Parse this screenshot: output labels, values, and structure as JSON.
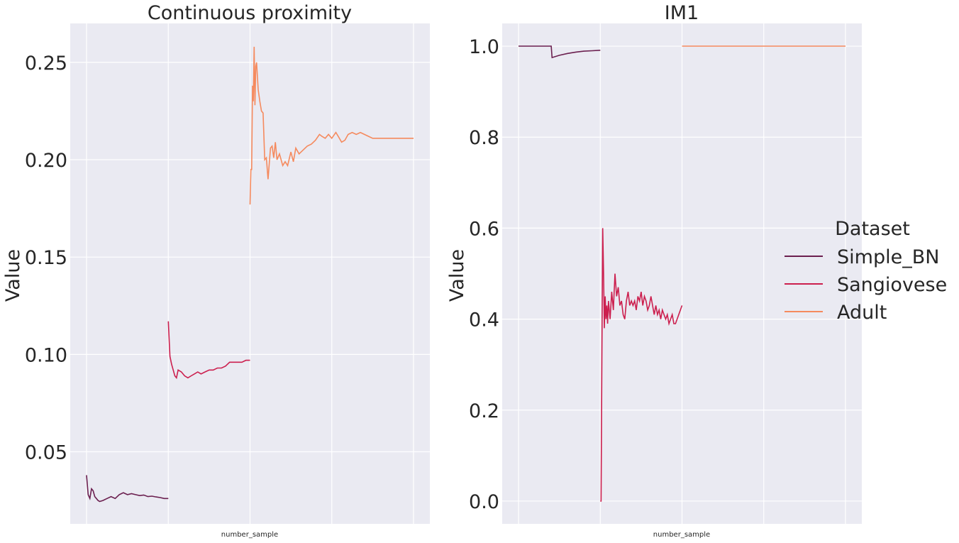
{
  "chart_data": [
    {
      "type": "line",
      "title": "Continuous proximity",
      "xlabel": "number_sample",
      "ylabel": "Value",
      "ylim": [
        0.013,
        0.27
      ],
      "yticks": [
        "0.05",
        "0.10",
        "0.15",
        "0.20",
        "0.25"
      ],
      "ytick_values": [
        0.05,
        0.1,
        0.15,
        0.2,
        0.25
      ],
      "xlim": [
        -0.2,
        4.2
      ],
      "xgrid": [
        0,
        1,
        2,
        3,
        4
      ],
      "grid": true,
      "series": [
        {
          "name": "Simple_BN",
          "color": "#6b1f4f",
          "points": [
            [
              0.0,
              0.038
            ],
            [
              0.02,
              0.028
            ],
            [
              0.04,
              0.026
            ],
            [
              0.06,
              0.031
            ],
            [
              0.08,
              0.03
            ],
            [
              0.1,
              0.027
            ],
            [
              0.12,
              0.026
            ],
            [
              0.14,
              0.025
            ],
            [
              0.16,
              0.0245
            ],
            [
              0.2,
              0.025
            ],
            [
              0.25,
              0.026
            ],
            [
              0.3,
              0.027
            ],
            [
              0.35,
              0.026
            ],
            [
              0.4,
              0.028
            ],
            [
              0.45,
              0.029
            ],
            [
              0.5,
              0.028
            ],
            [
              0.55,
              0.0285
            ],
            [
              0.6,
              0.028
            ],
            [
              0.65,
              0.0275
            ],
            [
              0.7,
              0.0278
            ],
            [
              0.75,
              0.027
            ],
            [
              0.8,
              0.0272
            ],
            [
              0.85,
              0.0268
            ],
            [
              0.9,
              0.0265
            ],
            [
              0.95,
              0.026
            ],
            [
              1.0,
              0.026
            ]
          ]
        },
        {
          "name": "Sangiovese",
          "color": "#cc1f4e",
          "points": [
            [
              1.0,
              0.117
            ],
            [
              1.02,
              0.099
            ],
            [
              1.04,
              0.095
            ],
            [
              1.06,
              0.092
            ],
            [
              1.08,
              0.089
            ],
            [
              1.1,
              0.088
            ],
            [
              1.12,
              0.092
            ],
            [
              1.16,
              0.091
            ],
            [
              1.2,
              0.089
            ],
            [
              1.24,
              0.088
            ],
            [
              1.28,
              0.089
            ],
            [
              1.32,
              0.09
            ],
            [
              1.36,
              0.091
            ],
            [
              1.4,
              0.09
            ],
            [
              1.45,
              0.091
            ],
            [
              1.5,
              0.092
            ],
            [
              1.55,
              0.092
            ],
            [
              1.6,
              0.093
            ],
            [
              1.65,
              0.093
            ],
            [
              1.7,
              0.094
            ],
            [
              1.75,
              0.096
            ],
            [
              1.8,
              0.096
            ],
            [
              1.85,
              0.096
            ],
            [
              1.9,
              0.096
            ],
            [
              1.95,
              0.097
            ],
            [
              2.0,
              0.097
            ]
          ]
        },
        {
          "name": "Adult",
          "color": "#f58a5e",
          "points": [
            [
              2.0,
              0.177
            ],
            [
              2.01,
              0.195
            ],
            [
              2.02,
              0.195
            ],
            [
              2.03,
              0.238
            ],
            [
              2.04,
              0.23
            ],
            [
              2.05,
              0.258
            ],
            [
              2.06,
              0.228
            ],
            [
              2.07,
              0.248
            ],
            [
              2.08,
              0.25
            ],
            [
              2.1,
              0.236
            ],
            [
              2.12,
              0.23
            ],
            [
              2.14,
              0.225
            ],
            [
              2.16,
              0.224
            ],
            [
              2.18,
              0.2
            ],
            [
              2.2,
              0.201
            ],
            [
              2.22,
              0.19
            ],
            [
              2.25,
              0.206
            ],
            [
              2.27,
              0.207
            ],
            [
              2.29,
              0.201
            ],
            [
              2.31,
              0.209
            ],
            [
              2.33,
              0.2
            ],
            [
              2.36,
              0.203
            ],
            [
              2.4,
              0.197
            ],
            [
              2.43,
              0.199
            ],
            [
              2.46,
              0.197
            ],
            [
              2.5,
              0.204
            ],
            [
              2.53,
              0.199
            ],
            [
              2.56,
              0.206
            ],
            [
              2.6,
              0.203
            ],
            [
              2.65,
              0.205
            ],
            [
              2.7,
              0.207
            ],
            [
              2.75,
              0.208
            ],
            [
              2.8,
              0.21
            ],
            [
              2.85,
              0.213
            ],
            [
              2.88,
              0.212
            ],
            [
              2.92,
              0.211
            ],
            [
              2.96,
              0.213
            ],
            [
              3.0,
              0.211
            ],
            [
              3.05,
              0.214
            ],
            [
              3.08,
              0.212
            ],
            [
              3.12,
              0.209
            ],
            [
              3.16,
              0.21
            ],
            [
              3.2,
              0.213
            ],
            [
              3.25,
              0.214
            ],
            [
              3.3,
              0.213
            ],
            [
              3.35,
              0.214
            ],
            [
              3.4,
              0.213
            ],
            [
              3.45,
              0.212
            ],
            [
              3.5,
              0.211
            ],
            [
              3.6,
              0.211
            ],
            [
              4.0,
              0.211
            ]
          ]
        }
      ]
    },
    {
      "type": "line",
      "title": "IM1",
      "xlabel": "number_sample",
      "ylabel": "Value",
      "ylim": [
        -0.05,
        1.05
      ],
      "yticks": [
        "0.0",
        "0.2",
        "0.4",
        "0.6",
        "0.8",
        "1.0"
      ],
      "ytick_values": [
        0.0,
        0.2,
        0.4,
        0.6,
        0.8,
        1.0
      ],
      "xlim": [
        -0.2,
        4.2
      ],
      "xgrid": [
        0,
        1,
        2,
        3,
        4
      ],
      "grid": true,
      "series": [
        {
          "name": "Simple_BN",
          "color": "#6b1f4f",
          "points": [
            [
              0.0,
              1.0
            ],
            [
              0.4,
              1.0
            ],
            [
              0.41,
              0.975
            ],
            [
              0.5,
              0.98
            ],
            [
              0.6,
              0.984
            ],
            [
              0.7,
              0.987
            ],
            [
              0.8,
              0.989
            ],
            [
              0.9,
              0.99
            ],
            [
              1.0,
              0.991
            ]
          ]
        },
        {
          "name": "Sangiovese",
          "color": "#cc1f4e",
          "points": [
            [
              1.0,
              0.0
            ],
            [
              1.01,
              0.0
            ],
            [
              1.02,
              0.33
            ],
            [
              1.03,
              0.6
            ],
            [
              1.04,
              0.5
            ],
            [
              1.05,
              0.38
            ],
            [
              1.06,
              0.45
            ],
            [
              1.07,
              0.4
            ],
            [
              1.08,
              0.43
            ],
            [
              1.09,
              0.39
            ],
            [
              1.1,
              0.44
            ],
            [
              1.12,
              0.4
            ],
            [
              1.14,
              0.46
            ],
            [
              1.16,
              0.42
            ],
            [
              1.18,
              0.5
            ],
            [
              1.2,
              0.45
            ],
            [
              1.22,
              0.47
            ],
            [
              1.24,
              0.43
            ],
            [
              1.26,
              0.44
            ],
            [
              1.28,
              0.41
            ],
            [
              1.3,
              0.4
            ],
            [
              1.32,
              0.44
            ],
            [
              1.34,
              0.46
            ],
            [
              1.36,
              0.43
            ],
            [
              1.38,
              0.44
            ],
            [
              1.4,
              0.43
            ],
            [
              1.42,
              0.44
            ],
            [
              1.44,
              0.42
            ],
            [
              1.46,
              0.45
            ],
            [
              1.48,
              0.44
            ],
            [
              1.5,
              0.46
            ],
            [
              1.52,
              0.43
            ],
            [
              1.54,
              0.45
            ],
            [
              1.56,
              0.44
            ],
            [
              1.58,
              0.42
            ],
            [
              1.6,
              0.43
            ],
            [
              1.62,
              0.45
            ],
            [
              1.64,
              0.43
            ],
            [
              1.66,
              0.41
            ],
            [
              1.68,
              0.43
            ],
            [
              1.7,
              0.41
            ],
            [
              1.72,
              0.42
            ],
            [
              1.74,
              0.4
            ],
            [
              1.76,
              0.42
            ],
            [
              1.78,
              0.41
            ],
            [
              1.8,
              0.4
            ],
            [
              1.82,
              0.41
            ],
            [
              1.84,
              0.39
            ],
            [
              1.86,
              0.4
            ],
            [
              1.88,
              0.41
            ],
            [
              1.9,
              0.39
            ],
            [
              1.92,
              0.39
            ],
            [
              1.94,
              0.4
            ],
            [
              1.96,
              0.41
            ],
            [
              2.0,
              0.43
            ]
          ]
        },
        {
          "name": "Adult",
          "color": "#f58a5e",
          "points": [
            [
              2.0,
              1.0
            ],
            [
              4.0,
              1.0
            ]
          ]
        }
      ]
    }
  ],
  "legend": {
    "title": "Dataset",
    "placement": "right",
    "items": [
      {
        "label": "Simple_BN",
        "color": "#6b1f4f"
      },
      {
        "label": "Sangiovese",
        "color": "#cc1f4e"
      },
      {
        "label": "Adult",
        "color": "#f58a5e"
      }
    ]
  }
}
